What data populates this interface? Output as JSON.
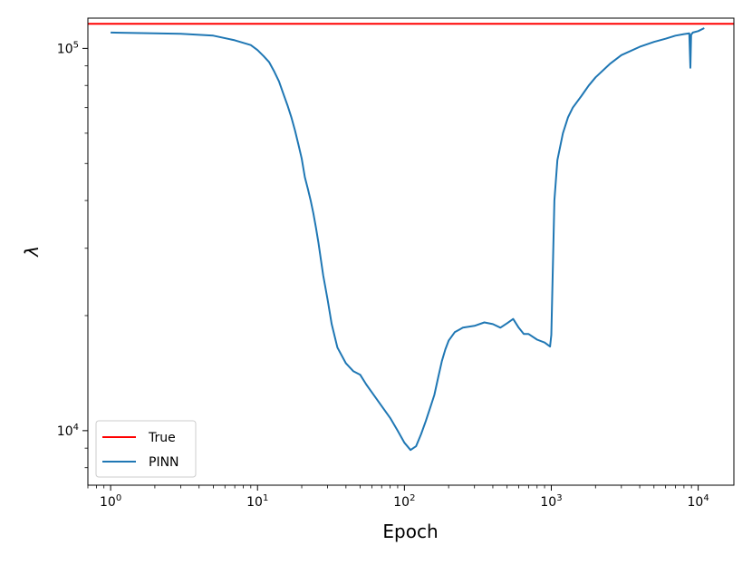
{
  "chart_data": {
    "type": "line",
    "title": "",
    "xlabel": "Epoch",
    "ylabel": "λ",
    "xscale": "log",
    "yscale": "log",
    "xlim": [
      0.7,
      17500
    ],
    "ylim": [
      7200,
      120000
    ],
    "x_ticks": [
      {
        "base": "10",
        "exp": "0",
        "value": 1
      },
      {
        "base": "10",
        "exp": "1",
        "value": 10
      },
      {
        "base": "10",
        "exp": "2",
        "value": 100
      },
      {
        "base": "10",
        "exp": "3",
        "value": 1000
      },
      {
        "base": "10",
        "exp": "4",
        "value": 10000
      }
    ],
    "y_ticks": [
      {
        "base": "10",
        "exp": "4",
        "value": 10000
      },
      {
        "base": "10",
        "exp": "5",
        "value": 100000
      }
    ],
    "grid": false,
    "legend_position": "lower-left",
    "series": [
      {
        "name": "True",
        "color": "#ff0000",
        "style": "hline",
        "y": 116000
      },
      {
        "name": "PINN",
        "color": "#1f77b4",
        "style": "line",
        "x": [
          1,
          2,
          3,
          5,
          7,
          9,
          10,
          11,
          12,
          13,
          14,
          15,
          16,
          17,
          18,
          19,
          20,
          21,
          22,
          23,
          24,
          25,
          26,
          27,
          28,
          30,
          32,
          35,
          40,
          45,
          50,
          55,
          60,
          70,
          80,
          90,
          100,
          110,
          120,
          130,
          140,
          150,
          160,
          170,
          180,
          190,
          200,
          220,
          250,
          300,
          350,
          400,
          450,
          500,
          550,
          600,
          650,
          700,
          800,
          900,
          980,
          1000,
          1050,
          1100,
          1200,
          1300,
          1400,
          1500,
          1600,
          1700,
          1800,
          2000,
          2500,
          3000,
          4000,
          5000,
          6000,
          7000,
          8000,
          8700,
          8850,
          8950,
          9200,
          10000,
          11000
        ],
        "y": [
          110000,
          109500,
          109200,
          108000,
          105000,
          102000,
          99000,
          95500,
          92000,
          87000,
          82000,
          76000,
          71000,
          66000,
          61000,
          56000,
          51500,
          46000,
          43000,
          40000,
          37000,
          34000,
          31000,
          28000,
          25500,
          22000,
          19000,
          16500,
          15000,
          14300,
          14000,
          13200,
          12600,
          11600,
          10800,
          10000,
          9300,
          8900,
          9100,
          9800,
          10600,
          11500,
          12400,
          13800,
          15200,
          16300,
          17200,
          18100,
          18600,
          18800,
          19200,
          19000,
          18600,
          19100,
          19600,
          18600,
          17900,
          17900,
          17300,
          17000,
          16600,
          17800,
          40000,
          51000,
          60000,
          66000,
          70000,
          72500,
          75000,
          77500,
          80000,
          84000,
          91000,
          96000,
          101000,
          104000,
          106000,
          108000,
          109000,
          109500,
          89000,
          108500,
          110000,
          111000,
          113000
        ]
      }
    ]
  }
}
